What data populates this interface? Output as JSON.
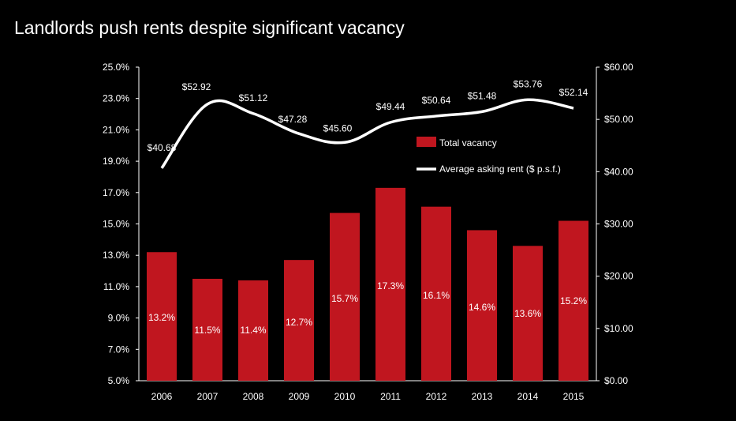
{
  "title": "Landlords push rents despite significant vacancy",
  "colors": {
    "background": "#000000",
    "bar": "#c0161f",
    "line": "#ffffff",
    "axis": "#ffffff",
    "text": "#ffffff"
  },
  "chart_data": {
    "type": "bar",
    "title": "Landlords push rents despite significant vacancy",
    "categories": [
      "2006",
      "2007",
      "2008",
      "2009",
      "2010",
      "2011",
      "2012",
      "2013",
      "2014",
      "2015"
    ],
    "series": [
      {
        "name": "Total vacancy",
        "type": "bar",
        "axis": "left",
        "values": [
          13.2,
          11.5,
          11.4,
          12.7,
          15.7,
          17.3,
          16.1,
          14.6,
          13.6,
          15.2
        ],
        "labels": [
          "13.2%",
          "11.5%",
          "11.4%",
          "12.7%",
          "15.7%",
          "17.3%",
          "16.1%",
          "14.6%",
          "13.6%",
          "15.2%"
        ]
      },
      {
        "name": "Average asking rent ($ p.s.f.)",
        "type": "line",
        "axis": "right",
        "values": [
          40.68,
          52.92,
          51.12,
          47.28,
          45.6,
          49.44,
          50.64,
          51.48,
          53.76,
          52.14
        ],
        "labels": [
          "$40.68",
          "$52.92",
          "$51.12",
          "$47.28",
          "$45.60",
          "$49.44",
          "$50.64",
          "$51.48",
          "$53.76",
          "$52.14"
        ]
      }
    ],
    "y_left": {
      "ylim": [
        5.0,
        25.0
      ],
      "ticks": [
        "5.0%",
        "7.0%",
        "9.0%",
        "11.0%",
        "13.0%",
        "15.0%",
        "17.0%",
        "19.0%",
        "21.0%",
        "23.0%",
        "25.0%"
      ]
    },
    "y_right": {
      "ylim": [
        0,
        60
      ],
      "ticks": [
        "$0.00",
        "$10.00",
        "$20.00",
        "$30.00",
        "$40.00",
        "$50.00",
        "$60.00"
      ]
    },
    "xlabel": "",
    "ylabel": "",
    "grid": false,
    "legend": "top-right inside plot"
  }
}
